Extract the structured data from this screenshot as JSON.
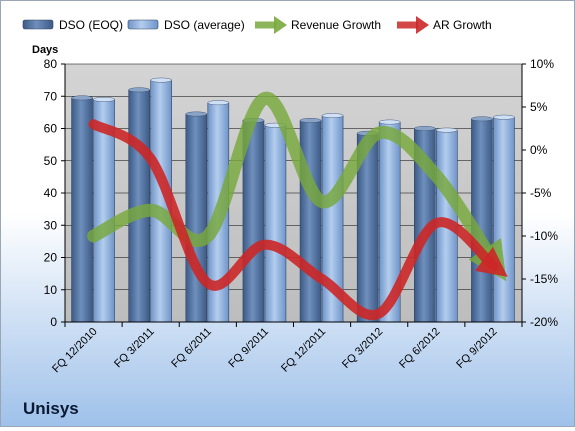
{
  "company": "Unisys",
  "chart_data": {
    "type": "bar",
    "categories": [
      "FQ 12/2010",
      "FQ 3/2011",
      "FQ 6/2011",
      "FQ 9/2011",
      "FQ 12/2011",
      "FQ 3/2012",
      "FQ 6/2012",
      "FQ 9/2012"
    ],
    "ylabel": "Days",
    "ylim": [
      0,
      80
    ],
    "y_ticks": [
      "0",
      "10",
      "20",
      "30",
      "40",
      "50",
      "60",
      "70",
      "80"
    ],
    "y2lim": [
      -20,
      10
    ],
    "y2_ticks": [
      "-20%",
      "-15%",
      "-10%",
      "-5%",
      "0%",
      "5%",
      "10%"
    ],
    "legend_position": "top",
    "series": [
      {
        "name": "DSO (EOQ)",
        "kind": "bar",
        "axis": "left",
        "color": "#4f6d97",
        "values": [
          69.5,
          72,
          64.5,
          62.5,
          62.5,
          58.5,
          60,
          63
        ]
      },
      {
        "name": "DSO (average)",
        "kind": "bar",
        "axis": "left",
        "color": "#8fb0db",
        "values": [
          69,
          75,
          68,
          61,
          64,
          62,
          59.5,
          63.5
        ]
      },
      {
        "name": "Revenue Growth",
        "kind": "line",
        "axis": "right",
        "color": "#78a83c",
        "values": [
          -10,
          -7,
          -10,
          6,
          -6,
          2,
          -3,
          -13
        ]
      },
      {
        "name": "AR Growth",
        "kind": "line",
        "axis": "right",
        "color": "#cc2727",
        "values": [
          3,
          -1,
          -15.5,
          -11,
          -15,
          -19,
          -8.5,
          -13.5
        ]
      }
    ]
  }
}
